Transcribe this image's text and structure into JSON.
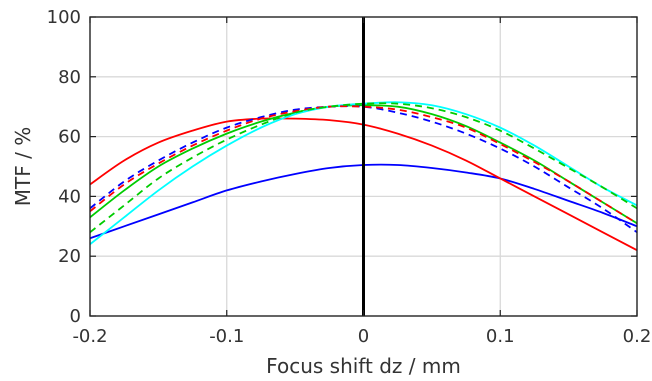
{
  "chart_data": {
    "type": "line",
    "title": "",
    "xlabel": "Focus shift dz / mm",
    "ylabel": "MTF / %",
    "xlim": [
      -0.2,
      0.2
    ],
    "ylim": [
      0,
      100
    ],
    "x_ticks": [
      -0.2,
      -0.1,
      0,
      0.1,
      0.2
    ],
    "x_tick_labels": [
      "-0.2",
      "-0.1",
      "0",
      "0.1",
      "0.2"
    ],
    "y_ticks": [
      0,
      20,
      40,
      60,
      80,
      100
    ],
    "y_tick_labels": [
      "0",
      "20",
      "40",
      "60",
      "80",
      "100"
    ],
    "grid": true,
    "zero_line": true,
    "x": [
      -0.2,
      -0.175,
      -0.15,
      -0.125,
      -0.1,
      -0.075,
      -0.05,
      -0.025,
      0,
      0.025,
      0.05,
      0.075,
      0.1,
      0.125,
      0.15,
      0.175,
      0.2
    ],
    "series": [
      {
        "color": "#0000ff",
        "dash": false,
        "values": [
          26,
          30,
          34,
          38,
          42,
          45,
          47.5,
          49.5,
          50.5,
          50.5,
          49.5,
          48,
          46,
          42.5,
          38.5,
          34.5,
          30
        ]
      },
      {
        "color": "#ff0000",
        "dash": false,
        "values": [
          44,
          52,
          58,
          62,
          65,
          66,
          66,
          65.5,
          64,
          61,
          57,
          52,
          46,
          40,
          34,
          28,
          22
        ]
      },
      {
        "color": "#00cc00",
        "dash": false,
        "values": [
          33,
          42,
          50,
          56,
          61,
          65,
          68,
          70,
          70.5,
          70,
          67.5,
          63.5,
          58,
          52,
          45,
          38,
          31
        ]
      },
      {
        "color": "#00ffff",
        "dash": false,
        "values": [
          24,
          33,
          42,
          50,
          57,
          63,
          67.5,
          70,
          71,
          71.5,
          70.5,
          67.5,
          63,
          57,
          50,
          43,
          37
        ]
      },
      {
        "color": "#0000ff",
        "dash": true,
        "values": [
          36,
          45,
          52,
          58,
          63,
          66.5,
          69,
          70,
          70,
          68,
          65,
          61,
          56,
          50,
          43,
          36,
          28
        ]
      },
      {
        "color": "#ff0000",
        "dash": true,
        "values": [
          35,
          44,
          51,
          57,
          62,
          66,
          68.5,
          70,
          70,
          69,
          66.5,
          63,
          57.5,
          51.5,
          45,
          38,
          31
        ]
      },
      {
        "color": "#00cc00",
        "dash": true,
        "values": [
          28,
          37,
          46,
          53,
          59,
          64,
          68,
          70,
          71,
          71,
          69.5,
          66.5,
          62,
          56,
          49.5,
          43,
          36
        ]
      }
    ]
  }
}
